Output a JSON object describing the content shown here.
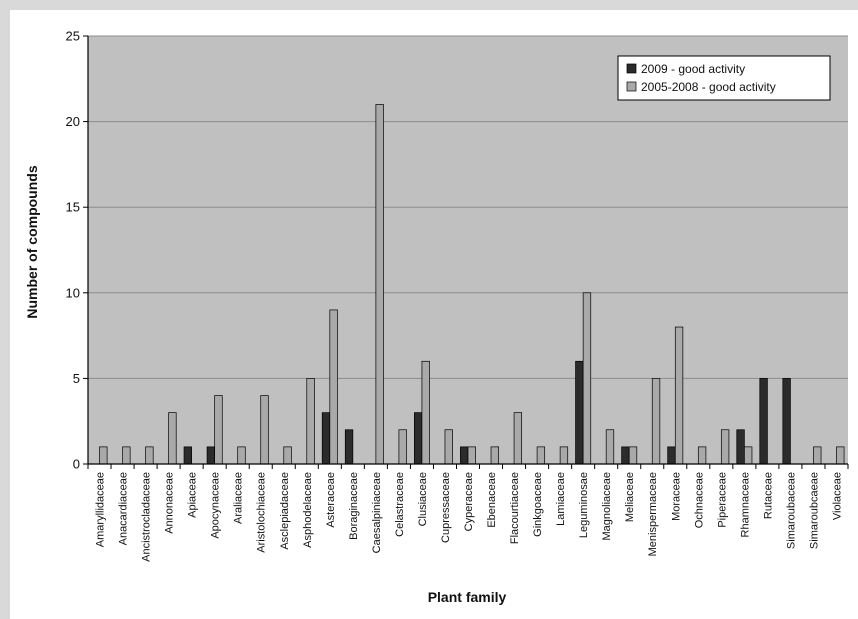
{
  "chart_data": {
    "type": "bar",
    "xlabel": "Plant family",
    "ylabel": "Number of compounds",
    "ylim": [
      0,
      25
    ],
    "yticks": [
      0,
      5,
      10,
      15,
      20,
      25
    ],
    "grid": true,
    "legend_position": "top-right",
    "categories": [
      "Amaryllidaceae",
      "Anacardiaceae",
      "Ancistrocladaceae",
      "Annonaceae",
      "Apiaceae",
      "Apocynaceae",
      "Araliaceae",
      "Aristolochiaceae",
      "Asclepiadaceae",
      "Asphodelaceae",
      "Asteraceae",
      "Boraginaceae",
      "Caesalpiniaceae",
      "Celastraceae",
      "Clusiaceae",
      "Cupressaceae",
      "Cyperaceae",
      "Ebenaceae",
      "Flacourtiaceae",
      "Ginkgoaceae",
      "Lamiaceae",
      "Leguminosae",
      "Magnoliaceae",
      "Meliaceae",
      "Menispermaceae",
      "Moraceae",
      "Ochnaceae",
      "Piperaceae",
      "Rhamnaceae",
      "Rutaceae",
      "Simaroubaceae",
      "Simaroubcaeae",
      "Violaceae"
    ],
    "series": [
      {
        "name": "2009 - good activity",
        "color": "#2b2b2b",
        "values": [
          0,
          0,
          0,
          0,
          1,
          1,
          0,
          0,
          0,
          0,
          3,
          2,
          0,
          0,
          3,
          0,
          1,
          0,
          0,
          0,
          0,
          6,
          0,
          1,
          0,
          1,
          0,
          0,
          2,
          5,
          5,
          0,
          0
        ]
      },
      {
        "name": "2005-2008 - good activity",
        "color": "#a9a9a9",
        "values": [
          1,
          1,
          1,
          3,
          0,
          4,
          1,
          4,
          1,
          5,
          9,
          0,
          21,
          2,
          6,
          2,
          1,
          1,
          3,
          1,
          1,
          10,
          2,
          1,
          5,
          8,
          1,
          2,
          1,
          0,
          0,
          1,
          1
        ]
      }
    ]
  },
  "colors": {
    "plot_background": "#c0c0c0",
    "gridline": "#8c8c8c",
    "page_background": "#ffffff",
    "outer_background": "#d9d9d9"
  }
}
